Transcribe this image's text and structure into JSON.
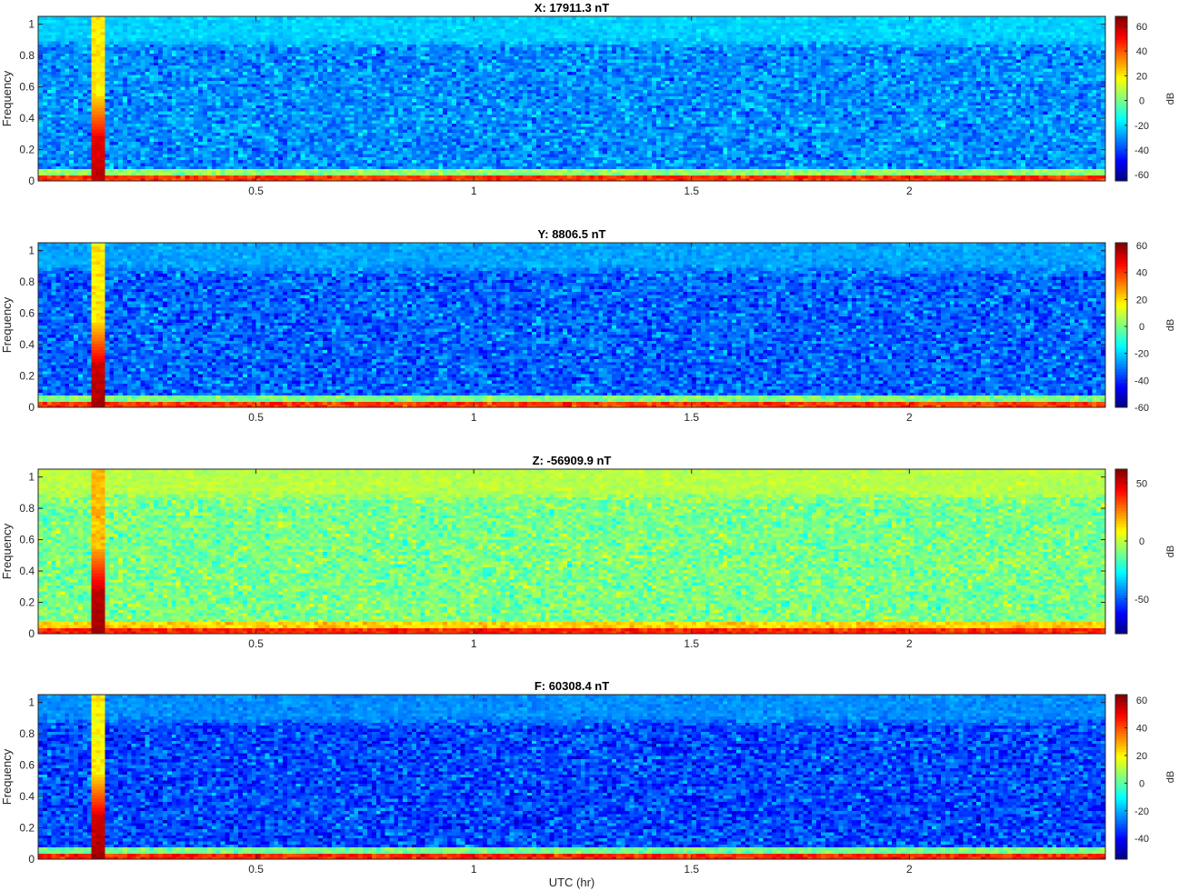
{
  "chart_data": [
    {
      "type": "heatmap",
      "title": "X: 17911.3 nT",
      "ylabel": "Frequency",
      "xlabel": "",
      "xlim": [
        0.0,
        2.45
      ],
      "ylim": [
        0,
        1.05
      ],
      "xticks": [
        0.5,
        1,
        1.5,
        2
      ],
      "xtick_labels": [
        "0.5",
        "1",
        "1.5",
        "2"
      ],
      "yticks": [
        0,
        0.2,
        0.4,
        0.6,
        0.8,
        1
      ],
      "ytick_labels": [
        "0",
        "0.2",
        "0.4",
        "0.6",
        "0.8",
        "1"
      ],
      "colorbar": {
        "label": "dB",
        "clim": [
          -65,
          68
        ],
        "ticks": [
          -60,
          -40,
          -20,
          0,
          20,
          40,
          60
        ],
        "tick_labels": [
          "-60",
          "-40",
          "-20",
          "0",
          "20",
          "40",
          "60"
        ]
      },
      "background_level_db": -30,
      "high_freq_band": {
        "from": 0.85,
        "to": 1.05,
        "level_db": -15
      },
      "low_freq_band": {
        "from": 0,
        "to": 0.03,
        "level_db": 45
      },
      "burst": {
        "x_start": 0.125,
        "x_end": 0.158,
        "level_db": 60
      }
    },
    {
      "type": "heatmap",
      "title": "Y: 8806.5 nT",
      "ylabel": "Frequency",
      "xlabel": "",
      "xlim": [
        0.0,
        2.45
      ],
      "ylim": [
        0,
        1.05
      ],
      "xticks": [
        0.5,
        1,
        1.5,
        2
      ],
      "xtick_labels": [
        "0.5",
        "1",
        "1.5",
        "2"
      ],
      "yticks": [
        0,
        0.2,
        0.4,
        0.6,
        0.8,
        1
      ],
      "ytick_labels": [
        "0",
        "0.2",
        "0.4",
        "0.6",
        "0.8",
        "1"
      ],
      "colorbar": {
        "label": "dB",
        "clim": [
          -60,
          62
        ],
        "ticks": [
          -60,
          -40,
          -20,
          0,
          20,
          40,
          60
        ],
        "tick_labels": [
          "-60",
          "-40",
          "-20",
          "0",
          "20",
          "40",
          "60"
        ]
      },
      "background_level_db": -33,
      "high_freq_band": {
        "from": 0.85,
        "to": 1.05,
        "level_db": -20
      },
      "low_freq_band": {
        "from": 0,
        "to": 0.03,
        "level_db": 40
      },
      "burst": {
        "x_start": 0.125,
        "x_end": 0.158,
        "level_db": 58
      }
    },
    {
      "type": "heatmap",
      "title": "Z: -56909.9 nT",
      "ylabel": "Frequency",
      "xlabel": "",
      "xlim": [
        0.0,
        2.45
      ],
      "ylim": [
        0,
        1.05
      ],
      "xticks": [
        0.5,
        1,
        1.5,
        2
      ],
      "xtick_labels": [
        "0.5",
        "1",
        "1.5",
        "2"
      ],
      "yticks": [
        0,
        0.2,
        0.4,
        0.6,
        0.8,
        1
      ],
      "ytick_labels": [
        "0",
        "0.2",
        "0.4",
        "0.6",
        "0.8",
        "1"
      ],
      "colorbar": {
        "label": "dB",
        "clim": [
          -80,
          62
        ],
        "ticks": [
          -50,
          0,
          50
        ],
        "tick_labels": [
          "-50",
          "0",
          "50"
        ]
      },
      "background_level_db": -10,
      "high_freq_band": {
        "from": 0.85,
        "to": 1.05,
        "level_db": 5
      },
      "low_freq_band": {
        "from": 0,
        "to": 0.03,
        "level_db": 40
      },
      "burst": {
        "x_start": 0.125,
        "x_end": 0.158,
        "level_db": 58
      }
    },
    {
      "type": "heatmap",
      "title": "F: 60308.4 nT",
      "ylabel": "Frequency",
      "xlabel": "UTC (hr)",
      "xlim": [
        0.0,
        2.45
      ],
      "ylim": [
        0,
        1.05
      ],
      "xticks": [
        0.5,
        1,
        1.5,
        2
      ],
      "xtick_labels": [
        "0.5",
        "1",
        "1.5",
        "2"
      ],
      "yticks": [
        0,
        0.2,
        0.4,
        0.6,
        0.8,
        1
      ],
      "ytick_labels": [
        "0",
        "0.2",
        "0.4",
        "0.6",
        "0.8",
        "1"
      ],
      "colorbar": {
        "label": "dB",
        "clim": [
          -55,
          64
        ],
        "ticks": [
          -40,
          -20,
          0,
          20,
          40,
          60
        ],
        "tick_labels": [
          "-40",
          "-20",
          "0",
          "20",
          "40",
          "60"
        ]
      },
      "background_level_db": -32,
      "high_freq_band": {
        "from": 0.85,
        "to": 1.05,
        "level_db": -18
      },
      "low_freq_band": {
        "from": 0,
        "to": 0.03,
        "level_db": 45
      },
      "burst": {
        "x_start": 0.125,
        "x_end": 0.158,
        "level_db": 60
      }
    }
  ]
}
